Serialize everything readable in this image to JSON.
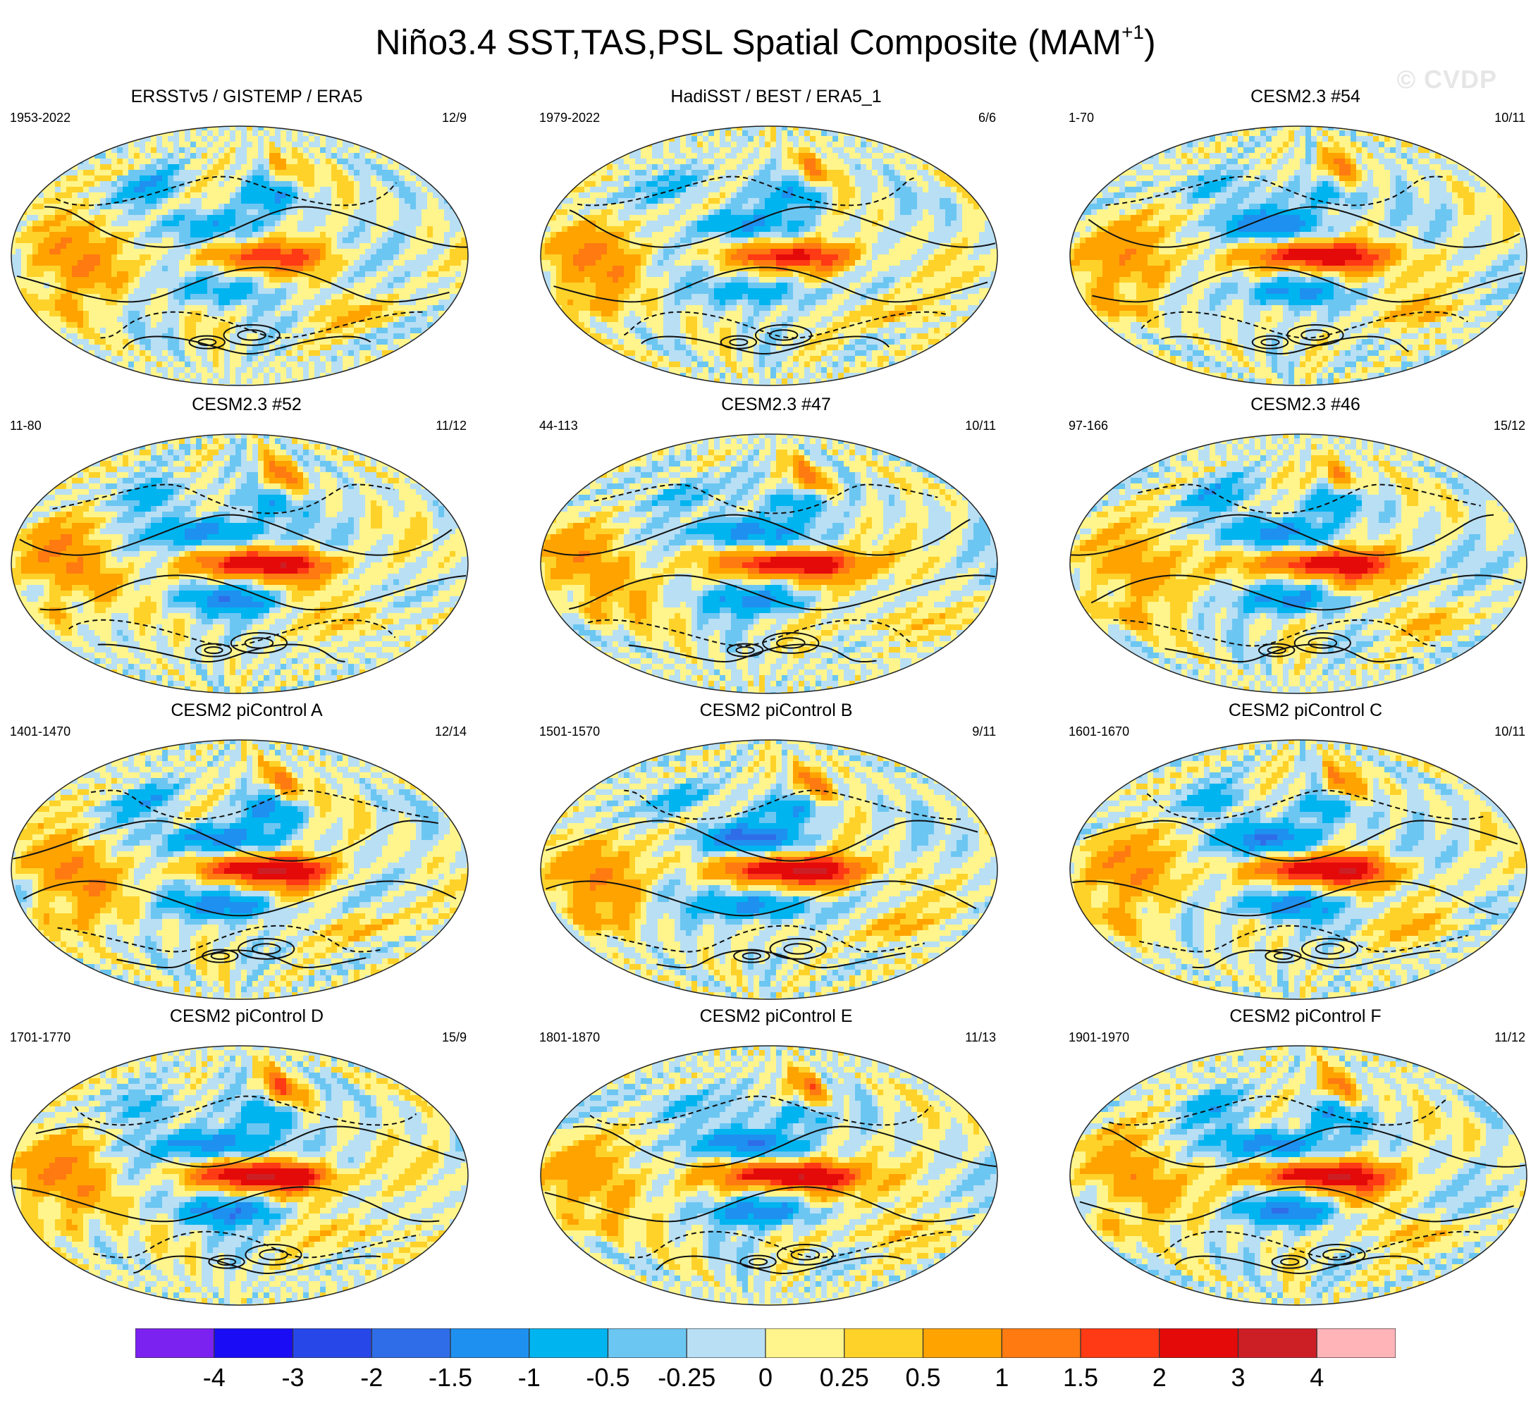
{
  "title_main": "Niño3.4 SST,TAS,PSL Spatial Composite (MAM",
  "title_sup": "+1",
  "title_end": ")",
  "watermark": "© CVDP",
  "chart_data": {
    "type": "heatmap",
    "projection": "global map panels (12), shaded SST/TAS anomaly with PSL contours",
    "panels": [
      {
        "title": "ERSSTv5 / GISTEMP / ERA5",
        "period": "1953-2022",
        "count": "12/9",
        "intensity": 0.55
      },
      {
        "title": "HadiSST / BEST / ERA5_1",
        "period": "1979-2022",
        "count": "6/6",
        "intensity": 0.7
      },
      {
        "title": "CESM2.3 #54",
        "period": "1-70",
        "count": "10/11",
        "intensity": 0.95
      },
      {
        "title": "CESM2.3 #52",
        "period": "11-80",
        "count": "11/12",
        "intensity": 0.95
      },
      {
        "title": "CESM2.3 #47",
        "period": "44-113",
        "count": "10/11",
        "intensity": 0.95
      },
      {
        "title": "CESM2.3 #46",
        "period": "97-166",
        "count": "15/12",
        "intensity": 0.9
      },
      {
        "title": "CESM2 piControl A",
        "period": "1401-1470",
        "count": "12/14",
        "intensity": 1.0
      },
      {
        "title": "CESM2 piControl B",
        "period": "1501-1570",
        "count": "9/11",
        "intensity": 1.1
      },
      {
        "title": "CESM2 piControl C",
        "period": "1601-1670",
        "count": "10/11",
        "intensity": 1.0
      },
      {
        "title": "CESM2 piControl D",
        "period": "1701-1770",
        "count": "15/9",
        "intensity": 1.05
      },
      {
        "title": "CESM2 piControl E",
        "period": "1801-1870",
        "count": "11/13",
        "intensity": 1.05
      },
      {
        "title": "CESM2 piControl F",
        "period": "1901-1970",
        "count": "11/12",
        "intensity": 1.0
      }
    ],
    "colorbar": {
      "levels": [
        "-4",
        "-3",
        "-2",
        "-1.5",
        "-1",
        "-0.5",
        "-0.25",
        "0",
        "0.25",
        "0.5",
        "1",
        "1.5",
        "2",
        "3",
        "4"
      ],
      "colors": [
        "#7b22f0",
        "#1a0df5",
        "#2747e8",
        "#2f6de8",
        "#1e90f0",
        "#00b4f0",
        "#6cc6f2",
        "#b8dff4",
        "#fff58c",
        "#ffd22a",
        "#ffa300",
        "#ff7a10",
        "#ff3a14",
        "#e40a0a",
        "#cc1f25",
        "#ffb4b8"
      ]
    }
  }
}
